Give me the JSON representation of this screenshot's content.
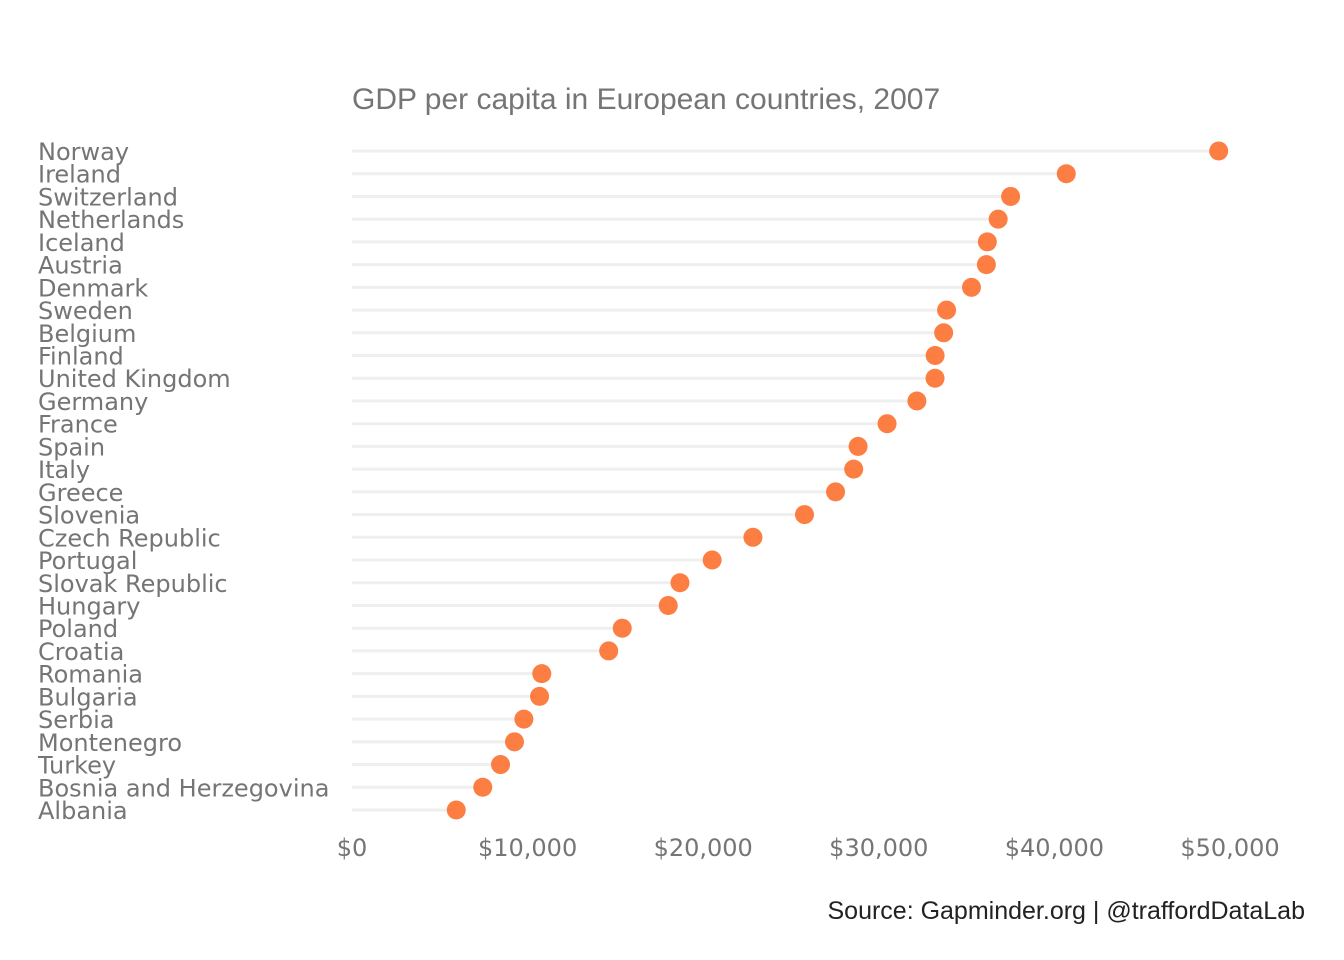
{
  "chart_data": {
    "type": "scatter",
    "subtype": "lollipop",
    "title": "GDP per capita in European countries, 2007",
    "xlabel": "",
    "ylabel": "",
    "xlim": [
      0,
      50000
    ],
    "x_ticks": [
      0,
      10000,
      20000,
      30000,
      40000,
      50000
    ],
    "x_tick_labels": [
      "$0",
      "$10,000",
      "$20,000",
      "$30,000",
      "$40,000",
      "$50,000"
    ],
    "categories": [
      "Norway",
      "Ireland",
      "Switzerland",
      "Netherlands",
      "Iceland",
      "Austria",
      "Denmark",
      "Sweden",
      "Belgium",
      "Finland",
      "United Kingdom",
      "Germany",
      "France",
      "Spain",
      "Italy",
      "Greece",
      "Slovenia",
      "Czech Republic",
      "Portugal",
      "Slovak Republic",
      "Hungary",
      "Poland",
      "Croatia",
      "Romania",
      "Bulgaria",
      "Serbia",
      "Montenegro",
      "Turkey",
      "Bosnia and Herzegovina",
      "Albania"
    ],
    "values": [
      49357,
      40676,
      37506,
      36798,
      36181,
      36126,
      35278,
      33860,
      33693,
      33207,
      33203,
      32170,
      30470,
      28821,
      28570,
      27538,
      25768,
      22833,
      20510,
      18678,
      18009,
      15390,
      14619,
      10808,
      10681,
      9787,
      9254,
      8458,
      7446,
      5937
    ],
    "grid": false,
    "legend": "none",
    "colors": {
      "point": "#fc6721",
      "stem": "#efefef",
      "text": "#757575",
      "caption": "#222222"
    },
    "caption": "Source: Gapminder.org  |  @traffordDataLab"
  }
}
